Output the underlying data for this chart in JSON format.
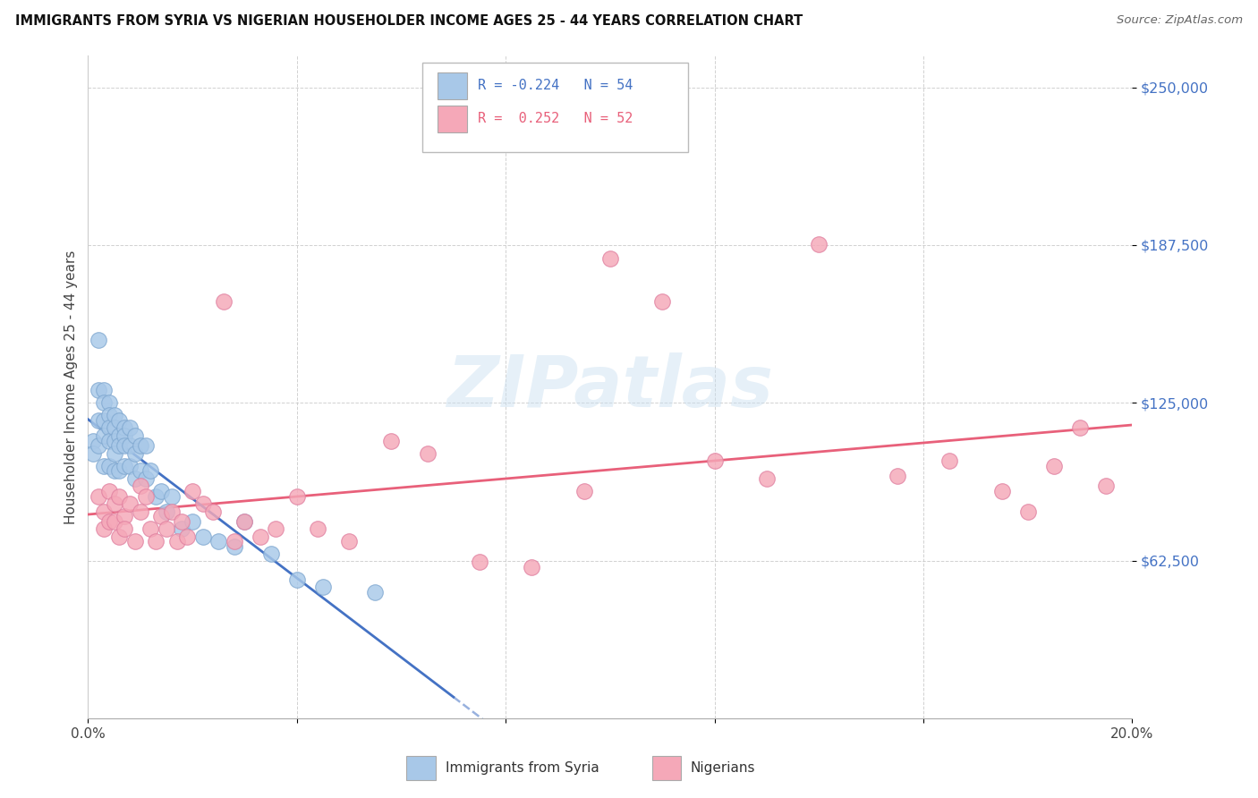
{
  "title": "IMMIGRANTS FROM SYRIA VS NIGERIAN HOUSEHOLDER INCOME AGES 25 - 44 YEARS CORRELATION CHART",
  "source": "Source: ZipAtlas.com",
  "ylabel": "Householder Income Ages 25 - 44 years",
  "xlim": [
    0.0,
    0.2
  ],
  "ylim": [
    0,
    262500
  ],
  "yticks": [
    62500,
    125000,
    187500,
    250000
  ],
  "ytick_labels": [
    "$62,500",
    "$125,000",
    "$187,500",
    "$250,000"
  ],
  "xtick_positions": [
    0.0,
    0.04,
    0.08,
    0.12,
    0.16,
    0.2
  ],
  "xtick_labels": [
    "",
    "",
    "",
    "",
    "",
    ""
  ],
  "background_color": "#ffffff",
  "watermark_text": "ZIPatlas",
  "syria_color": "#a8c8e8",
  "nigeria_color": "#f5a8b8",
  "syria_edge_color": "#80a8d0",
  "nigeria_edge_color": "#e080a0",
  "syria_line_color": "#4472c4",
  "nigeria_line_color": "#e8607a",
  "legend_color_syria": "#4472c4",
  "legend_color_nigeria": "#e8607a",
  "syria_x": [
    0.001,
    0.001,
    0.002,
    0.002,
    0.002,
    0.002,
    0.003,
    0.003,
    0.003,
    0.003,
    0.003,
    0.004,
    0.004,
    0.004,
    0.004,
    0.004,
    0.005,
    0.005,
    0.005,
    0.005,
    0.005,
    0.006,
    0.006,
    0.006,
    0.006,
    0.007,
    0.007,
    0.007,
    0.007,
    0.008,
    0.008,
    0.008,
    0.009,
    0.009,
    0.009,
    0.01,
    0.01,
    0.011,
    0.011,
    0.012,
    0.013,
    0.014,
    0.015,
    0.016,
    0.018,
    0.02,
    0.022,
    0.025,
    0.028,
    0.03,
    0.035,
    0.04,
    0.045,
    0.055
  ],
  "syria_y": [
    110000,
    105000,
    150000,
    130000,
    118000,
    108000,
    130000,
    125000,
    118000,
    112000,
    100000,
    125000,
    120000,
    115000,
    110000,
    100000,
    120000,
    115000,
    110000,
    105000,
    98000,
    118000,
    112000,
    108000,
    98000,
    115000,
    112000,
    108000,
    100000,
    115000,
    108000,
    100000,
    112000,
    105000,
    95000,
    108000,
    98000,
    108000,
    95000,
    98000,
    88000,
    90000,
    82000,
    88000,
    75000,
    78000,
    72000,
    70000,
    68000,
    78000,
    65000,
    55000,
    52000,
    50000
  ],
  "nigeria_x": [
    0.002,
    0.003,
    0.003,
    0.004,
    0.004,
    0.005,
    0.005,
    0.006,
    0.006,
    0.007,
    0.007,
    0.008,
    0.009,
    0.01,
    0.01,
    0.011,
    0.012,
    0.013,
    0.014,
    0.015,
    0.016,
    0.017,
    0.018,
    0.019,
    0.02,
    0.022,
    0.024,
    0.026,
    0.028,
    0.03,
    0.033,
    0.036,
    0.04,
    0.044,
    0.05,
    0.058,
    0.065,
    0.075,
    0.085,
    0.095,
    0.1,
    0.11,
    0.12,
    0.13,
    0.14,
    0.155,
    0.165,
    0.175,
    0.18,
    0.185,
    0.19,
    0.195
  ],
  "nigeria_y": [
    88000,
    82000,
    75000,
    90000,
    78000,
    85000,
    78000,
    88000,
    72000,
    80000,
    75000,
    85000,
    70000,
    82000,
    92000,
    88000,
    75000,
    70000,
    80000,
    75000,
    82000,
    70000,
    78000,
    72000,
    90000,
    85000,
    82000,
    165000,
    70000,
    78000,
    72000,
    75000,
    88000,
    75000,
    70000,
    110000,
    105000,
    62000,
    60000,
    90000,
    182000,
    165000,
    102000,
    95000,
    188000,
    96000,
    102000,
    90000,
    82000,
    100000,
    115000,
    92000
  ]
}
